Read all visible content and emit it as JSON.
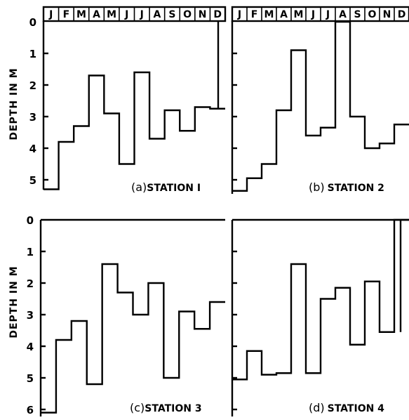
{
  "months": [
    "J",
    "F",
    "M",
    "A",
    "M",
    "J",
    "J",
    "A",
    "S",
    "O",
    "N",
    "D"
  ],
  "ylabel": "DEPTH IN M",
  "chart_data": [
    {
      "type": "line",
      "title": "(a) STATION 1",
      "tag": "(a)",
      "label": "STATION I",
      "xlabel": "",
      "ylabel": "DEPTH IN M",
      "categories": [
        "J",
        "F",
        "M",
        "A",
        "M",
        "J",
        "J",
        "A",
        "S",
        "O",
        "N",
        "D"
      ],
      "values": [
        5.3,
        3.8,
        3.3,
        1.7,
        2.9,
        4.5,
        1.6,
        3.7,
        2.8,
        3.45,
        2.7,
        2.75
      ],
      "ylim": [
        0,
        5.3
      ],
      "yticks": [
        "0",
        "1",
        "2",
        "3",
        "4",
        "5"
      ],
      "inverted_y": true,
      "step": true
    },
    {
      "type": "line",
      "title": "(b) STATION 2",
      "tag": "(b)",
      "label": "STATION 2",
      "xlabel": "",
      "ylabel": "",
      "categories": [
        "J",
        "F",
        "M",
        "A",
        "M",
        "J",
        "J",
        "A",
        "S",
        "O",
        "N",
        "D"
      ],
      "values": [
        5.35,
        4.95,
        4.5,
        2.8,
        0.9,
        3.6,
        3.35,
        0.0,
        3.0,
        4.0,
        3.85,
        3.25
      ],
      "ylim": [
        0,
        5.3
      ],
      "inverted_y": true,
      "step": true
    },
    {
      "type": "line",
      "title": "(c) STATION 3",
      "tag": "(c)",
      "label": "STATION 3",
      "xlabel": "",
      "ylabel": "DEPTH IN M",
      "categories": [
        "J",
        "F",
        "M",
        "A",
        "M",
        "J",
        "J",
        "A",
        "S",
        "O",
        "N",
        "D"
      ],
      "values": [
        6.1,
        3.8,
        3.2,
        5.2,
        1.4,
        2.3,
        3.0,
        2.0,
        5.0,
        2.9,
        3.45,
        2.6
      ],
      "ylim": [
        0,
        6.0
      ],
      "yticks": [
        "0",
        "1",
        "2",
        "3",
        "4",
        "5",
        "6"
      ],
      "inverted_y": true,
      "step": true
    },
    {
      "type": "line",
      "title": "(d) STATION 4",
      "tag": "(d)",
      "label": "STATION 4",
      "xlabel": "",
      "ylabel": "",
      "categories": [
        "J",
        "F",
        "M",
        "A",
        "M",
        "J",
        "J",
        "A",
        "S",
        "O",
        "N",
        "D"
      ],
      "values": [
        5.05,
        4.15,
        4.9,
        4.85,
        1.4,
        4.85,
        2.5,
        2.15,
        3.95,
        1.95,
        3.55,
        0.0
      ],
      "ylim": [
        0,
        6.0
      ],
      "inverted_y": true,
      "step": true
    }
  ]
}
